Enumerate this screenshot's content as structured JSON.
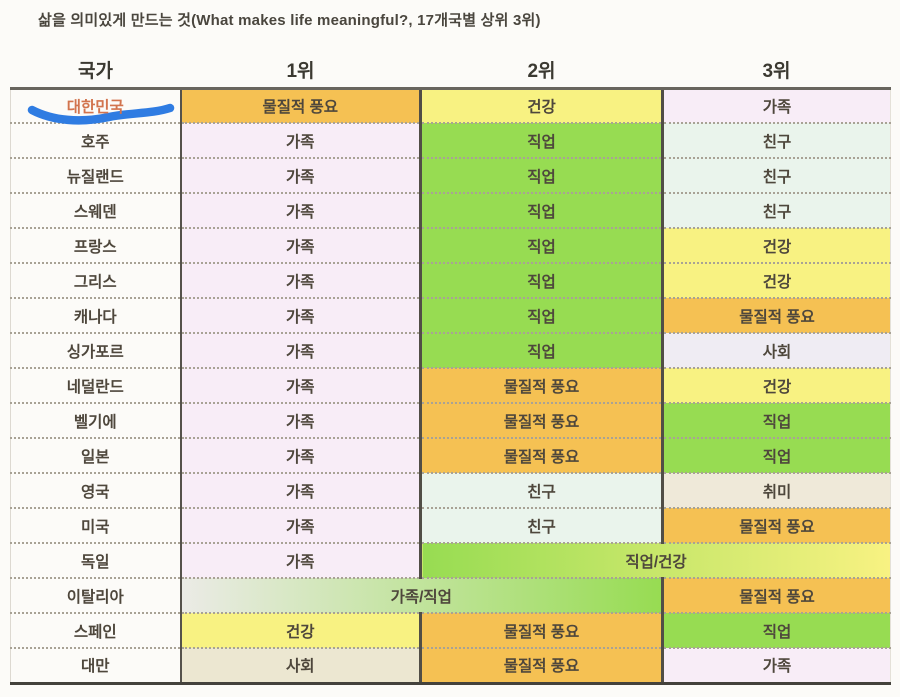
{
  "title": "삶을 의미있게 만드는 것(What makes life meaningful?, 17개국별 상위 3위)",
  "table": {
    "headers": [
      "국가",
      "1위",
      "2위",
      "3위"
    ],
    "rows": [
      {
        "country": "대한민국",
        "country_highlight": true,
        "cells": [
          {
            "text": "물질적 풍요",
            "color": "orange"
          },
          {
            "text": "건강",
            "color": "yellow"
          },
          {
            "text": "가족",
            "color": "pink"
          }
        ]
      },
      {
        "country": "호주",
        "cells": [
          {
            "text": "가족",
            "color": "pink"
          },
          {
            "text": "직업",
            "color": "green"
          },
          {
            "text": "친구",
            "color": "mint"
          }
        ]
      },
      {
        "country": "뉴질랜드",
        "cells": [
          {
            "text": "가족",
            "color": "pink"
          },
          {
            "text": "직업",
            "color": "green"
          },
          {
            "text": "친구",
            "color": "mint"
          }
        ]
      },
      {
        "country": "스웨덴",
        "cells": [
          {
            "text": "가족",
            "color": "pink"
          },
          {
            "text": "직업",
            "color": "green"
          },
          {
            "text": "친구",
            "color": "mint"
          }
        ]
      },
      {
        "country": "프랑스",
        "cells": [
          {
            "text": "가족",
            "color": "pink"
          },
          {
            "text": "직업",
            "color": "green"
          },
          {
            "text": "건강",
            "color": "yellow"
          }
        ]
      },
      {
        "country": "그리스",
        "cells": [
          {
            "text": "가족",
            "color": "pink"
          },
          {
            "text": "직업",
            "color": "green"
          },
          {
            "text": "건강",
            "color": "yellow"
          }
        ]
      },
      {
        "country": "캐나다",
        "cells": [
          {
            "text": "가족",
            "color": "pink"
          },
          {
            "text": "직업",
            "color": "green"
          },
          {
            "text": "물질적 풍요",
            "color": "orange"
          }
        ]
      },
      {
        "country": "싱가포르",
        "cells": [
          {
            "text": "가족",
            "color": "pink"
          },
          {
            "text": "직업",
            "color": "green"
          },
          {
            "text": "사회",
            "color": "lavender"
          }
        ]
      },
      {
        "country": "네덜란드",
        "cells": [
          {
            "text": "가족",
            "color": "pink"
          },
          {
            "text": "물질적 풍요",
            "color": "orange"
          },
          {
            "text": "건강",
            "color": "yellow"
          }
        ]
      },
      {
        "country": "벨기에",
        "cells": [
          {
            "text": "가족",
            "color": "pink"
          },
          {
            "text": "물질적 풍요",
            "color": "orange"
          },
          {
            "text": "직업",
            "color": "green"
          }
        ]
      },
      {
        "country": "일본",
        "cells": [
          {
            "text": "가족",
            "color": "pink"
          },
          {
            "text": "물질적 풍요",
            "color": "orange"
          },
          {
            "text": "직업",
            "color": "green"
          }
        ]
      },
      {
        "country": "영국",
        "cells": [
          {
            "text": "가족",
            "color": "pink"
          },
          {
            "text": "친구",
            "color": "mint"
          },
          {
            "text": "취미",
            "color": "beige"
          }
        ]
      },
      {
        "country": "미국",
        "cells": [
          {
            "text": "가족",
            "color": "pink"
          },
          {
            "text": "친구",
            "color": "mint"
          },
          {
            "text": "물질적 풍요",
            "color": "orange"
          }
        ]
      },
      {
        "country": "독일",
        "cells": [
          {
            "text": "가족",
            "color": "pink"
          },
          {
            "text": "직업/건강",
            "gradient": [
              "green",
              "yellow"
            ],
            "span": 2
          }
        ]
      },
      {
        "country": "이탈리아",
        "cells": [
          {
            "text": "가족/직업",
            "gradient": [
              "fog",
              "green"
            ],
            "span": 2
          },
          {
            "text": "물질적 풍요",
            "color": "orange"
          }
        ]
      },
      {
        "country": "스페인",
        "cells": [
          {
            "text": "건강",
            "color": "yellow"
          },
          {
            "text": "물질적 풍요",
            "color": "orange"
          },
          {
            "text": "직업",
            "color": "green"
          }
        ]
      },
      {
        "country": "대만",
        "cells": [
          {
            "text": "사회",
            "color": "khaki"
          },
          {
            "text": "물질적 풍요",
            "color": "orange"
          },
          {
            "text": "가족",
            "color": "pink"
          }
        ]
      }
    ]
  },
  "palette": {
    "orange": "#f5c153",
    "yellow": "#f8f282",
    "green": "#97dc52",
    "pink": "#f8edf7",
    "mint": "#eaf4ec",
    "lavender": "#efecf3",
    "beige": "#efe9d9",
    "khaki": "#ece7d1",
    "fog": "#ebebe6",
    "highlight_text": "#d2744e",
    "underline_blue": "#2f7ce2"
  },
  "chart_data": {
    "type": "table",
    "title": "삶을 의미있게 만드는 것(What makes life meaningful?, 17개국별 상위 3위)",
    "columns": [
      "국가",
      "1위",
      "2위",
      "3위"
    ],
    "rows": [
      [
        "대한민국",
        "물질적 풍요",
        "건강",
        "가족"
      ],
      [
        "호주",
        "가족",
        "직업",
        "친구"
      ],
      [
        "뉴질랜드",
        "가족",
        "직업",
        "친구"
      ],
      [
        "스웨덴",
        "가족",
        "직업",
        "친구"
      ],
      [
        "프랑스",
        "가족",
        "직업",
        "건강"
      ],
      [
        "그리스",
        "가족",
        "직업",
        "건강"
      ],
      [
        "캐나다",
        "가족",
        "직업",
        "물질적 풍요"
      ],
      [
        "싱가포르",
        "가족",
        "직업",
        "사회"
      ],
      [
        "네덜란드",
        "가족",
        "물질적 풍요",
        "건강"
      ],
      [
        "벨기에",
        "가족",
        "물질적 풍요",
        "직업"
      ],
      [
        "일본",
        "가족",
        "물질적 풍요",
        "직업"
      ],
      [
        "영국",
        "가족",
        "친구",
        "취미"
      ],
      [
        "미국",
        "가족",
        "친구",
        "물질적 풍요"
      ],
      [
        "독일",
        "가족",
        "직업/건강",
        "직업/건강"
      ],
      [
        "이탈리아",
        "가족/직업",
        "가족/직업",
        "물질적 풍요"
      ],
      [
        "스페인",
        "건강",
        "물질적 풍요",
        "직업"
      ],
      [
        "대만",
        "사회",
        "물질적 풍요",
        "가족"
      ]
    ],
    "notes": "독일 row merges 2위/3위 into one cell; 이탈리아 row merges 1위/2위 into one cell. 대한민국 row label is hand-underlined in blue."
  }
}
